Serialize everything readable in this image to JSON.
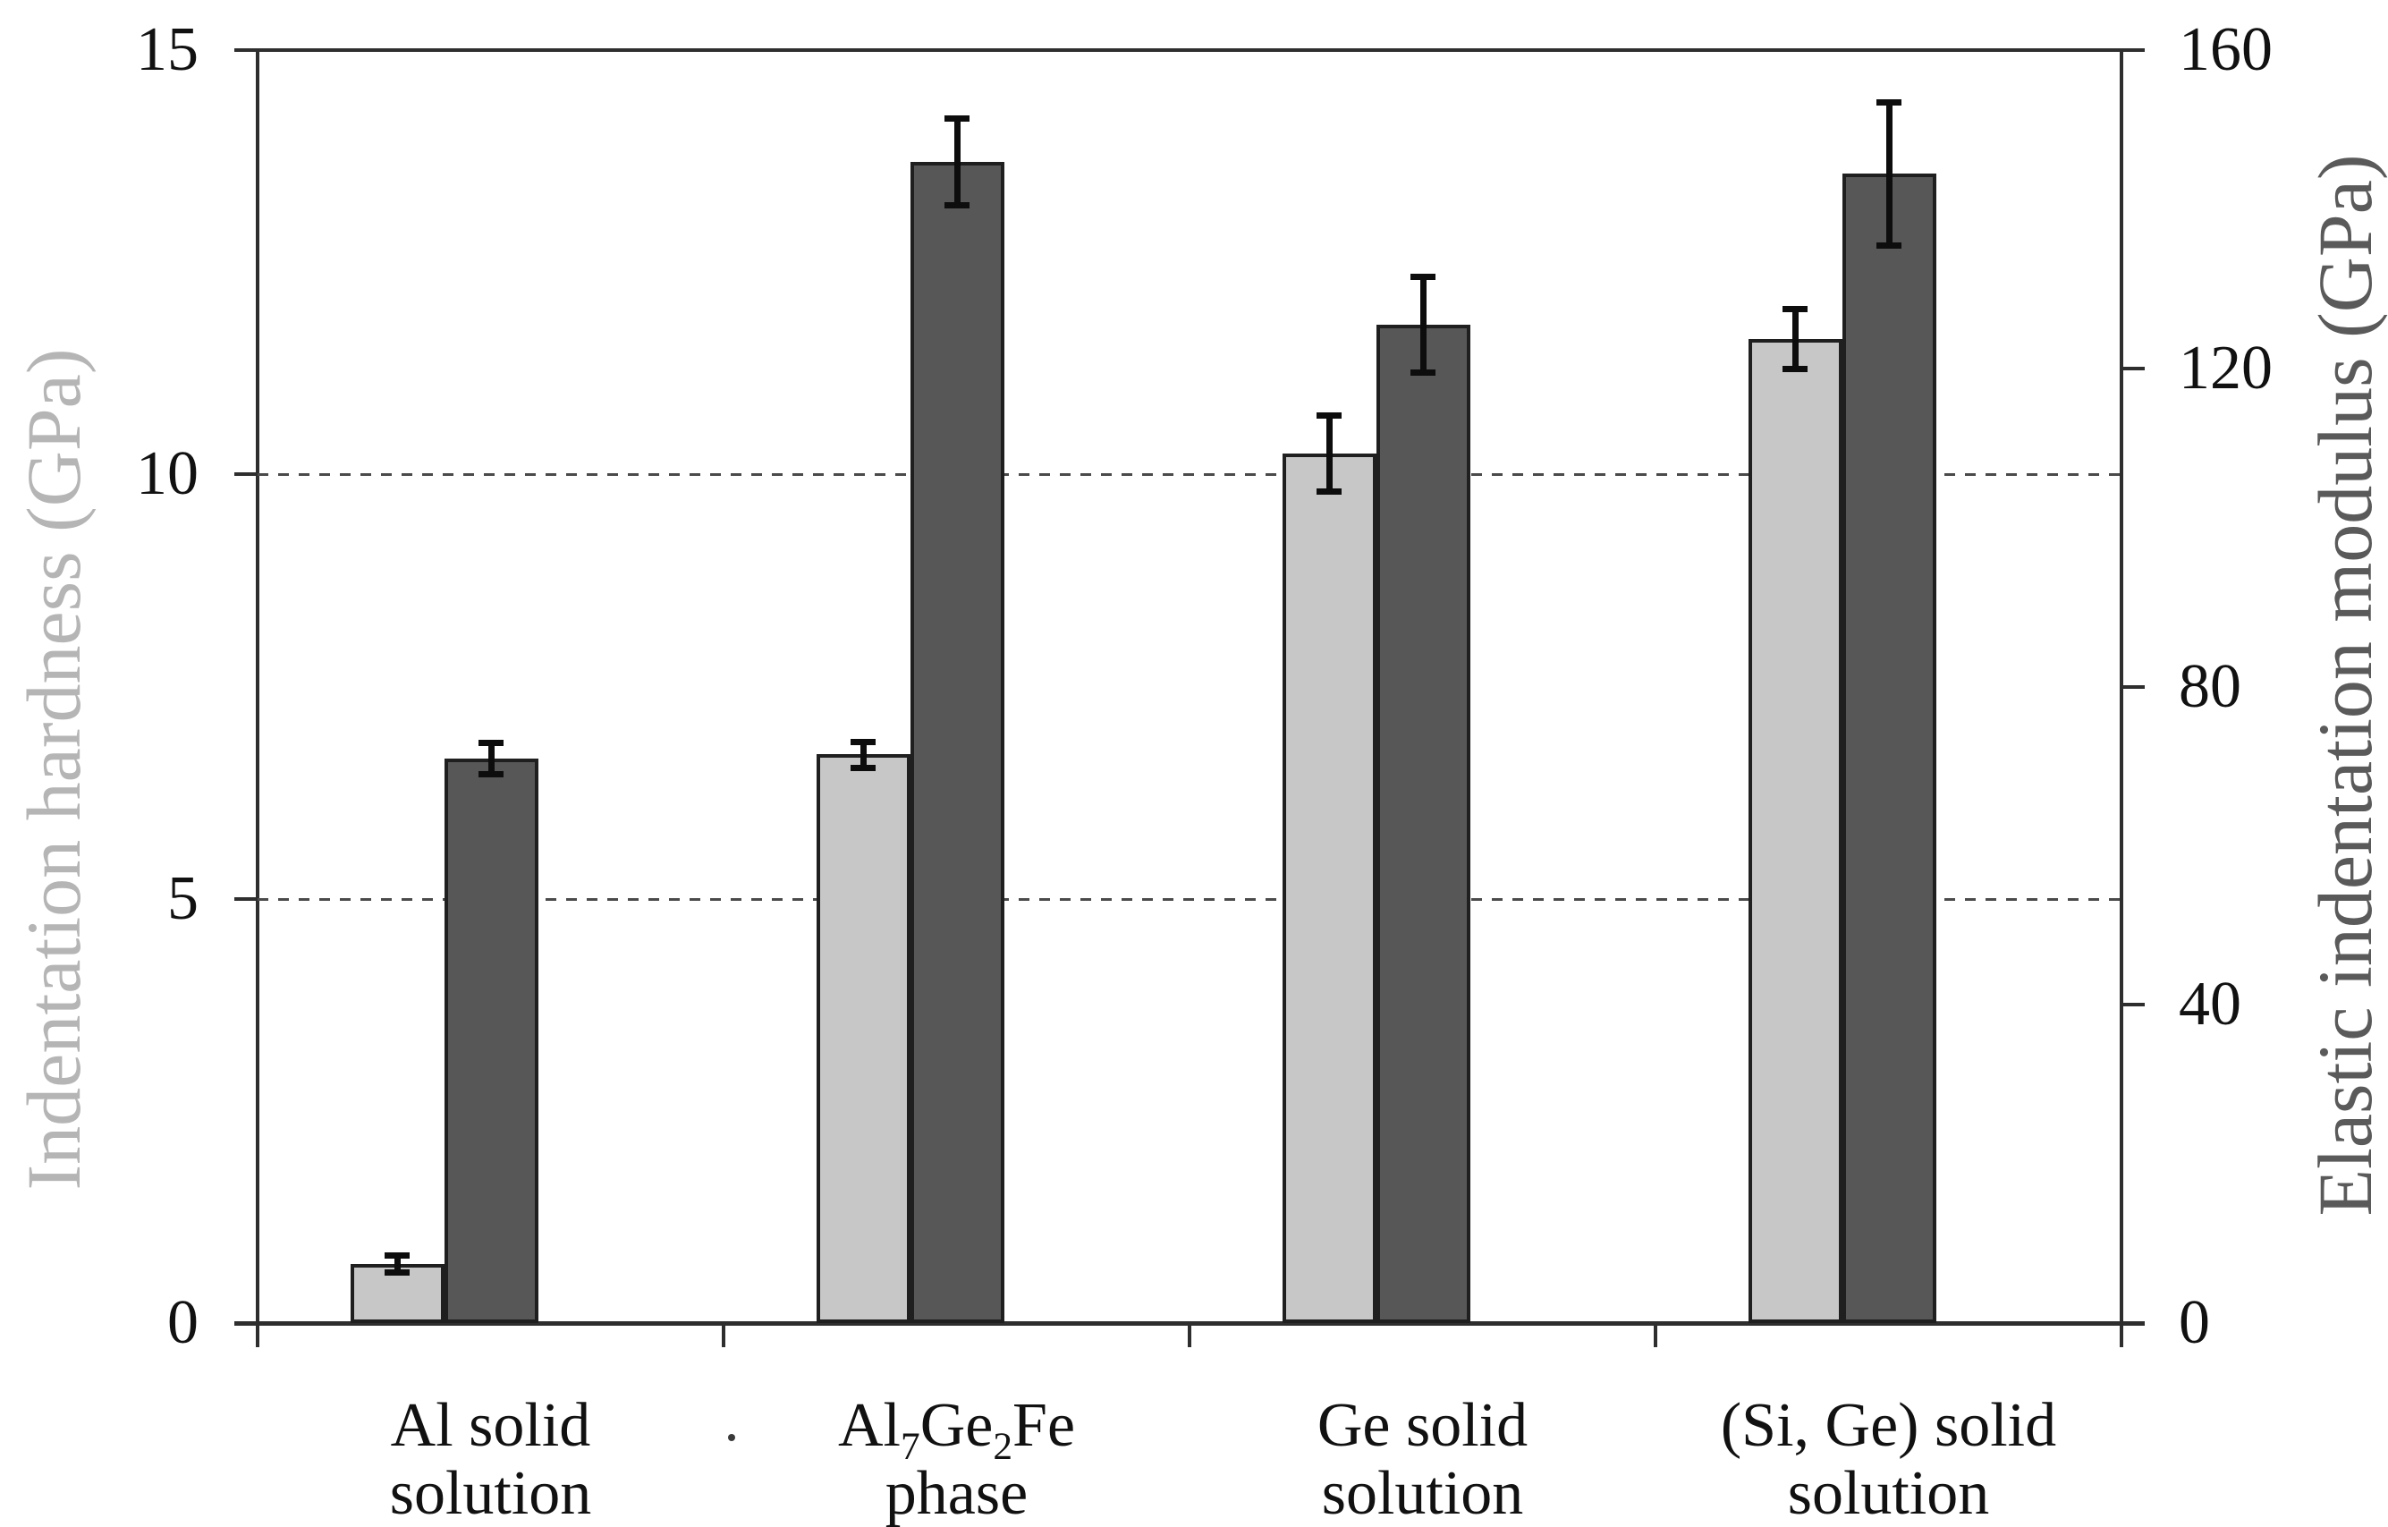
{
  "chart_data": {
    "type": "bar",
    "subtype": "grouped-dual-axis-with-error-bars",
    "title": "",
    "categories": [
      {
        "lines": [
          "Al solid",
          "solution"
        ]
      },
      {
        "lines": [
          "Al_7Ge_2Fe",
          "phase"
        ]
      },
      {
        "lines": [
          "Ge solid",
          "solution"
        ]
      },
      {
        "lines": [
          "(Si, Ge) solid",
          "solution"
        ]
      }
    ],
    "series": [
      {
        "name": "Indentation hardness",
        "axis": "left",
        "unit": "GPa",
        "color": "#c7c7c7",
        "border_color": "#1f1f1f",
        "values": [
          0.7,
          6.7,
          10.25,
          11.6
        ],
        "errors": [
          0.1,
          0.15,
          0.45,
          0.35
        ]
      },
      {
        "name": "Elastic indentation modulus",
        "axis": "right",
        "unit": "GPa",
        "color": "#575757",
        "border_color": "#1f1f1f",
        "values": [
          71,
          146,
          125.5,
          144.5
        ],
        "errors": [
          2,
          5.5,
          6,
          9
        ]
      }
    ],
    "left_axis": {
      "label": "Indentation hardness (GPa)",
      "label_color": "#b5b5b5",
      "range": [
        0,
        15
      ],
      "ticks": [
        0,
        5,
        10,
        15
      ],
      "gridlines": [
        5,
        10
      ],
      "gridline_style": "dashed"
    },
    "right_axis": {
      "label": "Elastic indentation modulus (GPa)",
      "label_color": "#5a5a5a",
      "range": [
        0,
        160
      ],
      "ticks": [
        0,
        40,
        80,
        120,
        160
      ]
    },
    "legend": "none",
    "grid": "horizontal dashed lines at left-axis values 5 and 10, drawn behind bars",
    "error_bar_color": "#0d0d0d"
  }
}
